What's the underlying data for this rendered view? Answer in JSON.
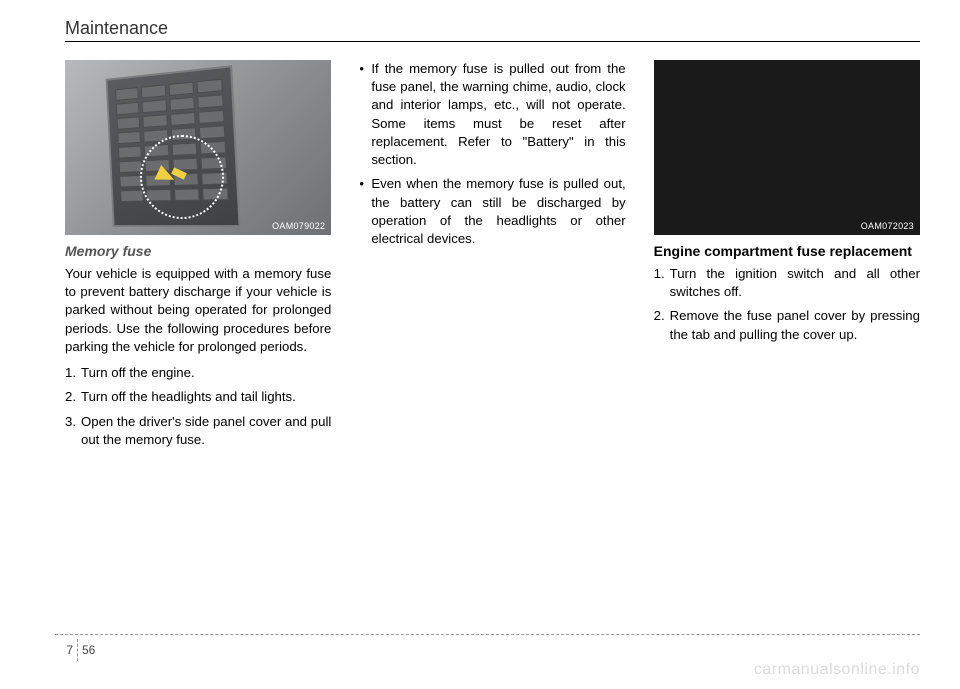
{
  "section_title": "Maintenance",
  "col1": {
    "photo_code": "OAM079022",
    "subheading": "Memory fuse",
    "para": "Your vehicle is equipped with a memory fuse to prevent battery discharge if your vehicle is parked without being operated for prolonged periods. Use the following procedures before parking the vehicle for prolonged periods.",
    "steps": [
      "Turn off the engine.",
      "Turn off the headlights and tail lights.",
      "Open the driver's side panel cover and pull out the memory fuse."
    ]
  },
  "col2": {
    "bullets": [
      "If the memory fuse is pulled out from the fuse panel, the warning chime, audio, clock and interior lamps, etc., will not operate. Some items must be reset after replacement. Refer to \"Battery\" in this section.",
      "Even when the memory fuse is pulled out, the battery can still be discharged by operation of the headlights or other electrical devices."
    ]
  },
  "col3": {
    "photo_code": "OAM072023",
    "heading": "Engine compartment fuse replacement",
    "steps": [
      "Turn the ignition switch and all other switches off.",
      "Remove the fuse panel cover by pressing the tab and pulling the cover up."
    ]
  },
  "footer": {
    "chapter": "7",
    "page": "56"
  },
  "watermark": "carmanualsonline.info"
}
